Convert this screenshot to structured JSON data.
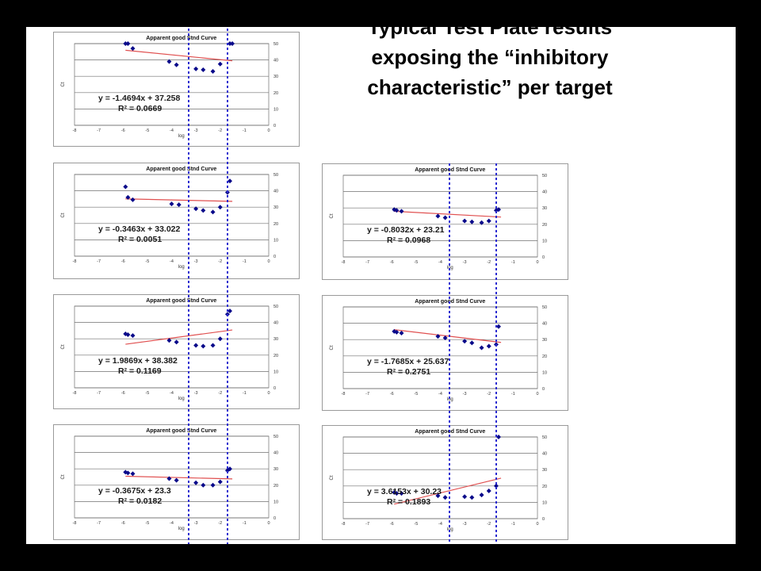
{
  "headline": {
    "line1": "Typical Test Plate results",
    "line2": "exposing the “inhibitory",
    "line3": "characteristic”  per target"
  },
  "colors": {
    "background": "#000000",
    "slide": "#ffffff",
    "point": "#0a0a8a",
    "trendline": "#e05050",
    "guide_line": "#2a2ad0",
    "grid": "#707070"
  },
  "chart_data": [
    {
      "type": "scatter",
      "title": "Apparent good Stnd Curve",
      "xlabel": "log",
      "ylabel": "Ct",
      "xlim": [
        -8,
        0
      ],
      "ylim": [
        0,
        50
      ],
      "xticks": [
        "-8",
        "-7",
        "-6",
        "-5",
        "-4",
        "-3",
        "-2",
        "-1",
        "0"
      ],
      "yticks": [
        "0",
        "10",
        "20",
        "30",
        "40",
        "50"
      ],
      "grid": "horizontal",
      "points": [
        [
          -5.9,
          50
        ],
        [
          -5.8,
          50
        ],
        [
          -5.6,
          47
        ],
        [
          -4.1,
          39
        ],
        [
          -3.8,
          37
        ],
        [
          -3.0,
          34.5
        ],
        [
          -2.7,
          34
        ],
        [
          -2.3,
          33
        ],
        [
          -2.0,
          37.5
        ],
        [
          -1.6,
          50
        ],
        [
          -1.5,
          50
        ]
      ],
      "trendline": {
        "slope": -1.4694,
        "intercept": 37.258,
        "x": [
          -5.9,
          -1.5
        ]
      },
      "equation": "y = -1.4694x + 37.258",
      "r2": "R² = 0.0669"
    },
    {
      "type": "scatter",
      "title": "Apparent good Stnd Curve",
      "xlabel": "log",
      "ylabel": "Ct",
      "xlim": [
        -8,
        0
      ],
      "ylim": [
        0,
        50
      ],
      "xticks": [
        "-8",
        "-7",
        "-6",
        "-5",
        "-4",
        "-3",
        "-2",
        "-1",
        "0"
      ],
      "yticks": [
        "0",
        "10",
        "20",
        "30",
        "40",
        "50"
      ],
      "grid": "horizontal",
      "points": [
        [
          -5.9,
          42.5
        ],
        [
          -5.8,
          36
        ],
        [
          -5.6,
          34.5
        ],
        [
          -4.0,
          32
        ],
        [
          -3.7,
          31.5
        ],
        [
          -3.0,
          29
        ],
        [
          -2.7,
          28
        ],
        [
          -2.3,
          27
        ],
        [
          -2.0,
          30
        ],
        [
          -1.7,
          39
        ],
        [
          -1.6,
          46
        ]
      ],
      "trendline": {
        "slope": -0.3463,
        "intercept": 33.022,
        "x": [
          -5.9,
          -1.5
        ]
      },
      "equation": "y = -0.3463x + 33.022",
      "r2": "R² = 0.0051"
    },
    {
      "type": "scatter",
      "title": "Apparent good Stnd Curve",
      "xlabel": "log",
      "ylabel": "Ct",
      "xlim": [
        -8,
        0
      ],
      "ylim": [
        0,
        50
      ],
      "xticks": [
        "-8",
        "-7",
        "-6",
        "-5",
        "-4",
        "-3",
        "-2",
        "-1",
        "0"
      ],
      "yticks": [
        "0",
        "10",
        "20",
        "30",
        "40",
        "50"
      ],
      "grid": "horizontal",
      "points": [
        [
          -5.9,
          29
        ],
        [
          -5.8,
          28.5
        ],
        [
          -5.6,
          28
        ],
        [
          -4.1,
          25
        ],
        [
          -3.8,
          24
        ],
        [
          -3.0,
          22
        ],
        [
          -2.7,
          21.5
        ],
        [
          -2.3,
          21
        ],
        [
          -2.0,
          22
        ],
        [
          -1.7,
          28.5
        ],
        [
          -1.6,
          29
        ]
      ],
      "trendline": {
        "slope": -0.8032,
        "intercept": 23.21,
        "x": [
          -5.9,
          -1.5
        ]
      },
      "equation": "y = -0.8032x + 23.21",
      "r2": "R² = 0.0968"
    },
    {
      "type": "scatter",
      "title": "Apparent good Stnd Curve",
      "xlabel": "log",
      "ylabel": "Ct",
      "xlim": [
        -8,
        0
      ],
      "ylim": [
        0,
        50
      ],
      "xticks": [
        "-8",
        "-7",
        "-6",
        "-5",
        "-4",
        "-3",
        "-2",
        "-1",
        "0"
      ],
      "yticks": [
        "0",
        "10",
        "20",
        "30",
        "40",
        "50"
      ],
      "grid": "horizontal",
      "points": [
        [
          -5.9,
          33
        ],
        [
          -5.8,
          32.5
        ],
        [
          -5.6,
          32
        ],
        [
          -4.1,
          29
        ],
        [
          -3.8,
          28
        ],
        [
          -3.0,
          26
        ],
        [
          -2.7,
          25.5
        ],
        [
          -2.3,
          26
        ],
        [
          -2.0,
          30
        ],
        [
          -1.7,
          45
        ],
        [
          -1.6,
          47
        ]
      ],
      "trendline": {
        "slope": 1.9869,
        "intercept": 38.382,
        "x": [
          -5.9,
          -1.5
        ]
      },
      "equation": "y = 1.9869x + 38.382",
      "r2": "R² = 0.1169"
    },
    {
      "type": "scatter",
      "title": "Apparent good Stnd Curve",
      "xlabel": "log",
      "ylabel": "Ct",
      "xlim": [
        -8,
        0
      ],
      "ylim": [
        0,
        50
      ],
      "xticks": [
        "-8",
        "-7",
        "-6",
        "-5",
        "-4",
        "-3",
        "-2",
        "-1",
        "0"
      ],
      "yticks": [
        "0",
        "10",
        "20",
        "30",
        "40",
        "50"
      ],
      "grid": "horizontal",
      "points": [
        [
          -5.9,
          35
        ],
        [
          -5.8,
          34.5
        ],
        [
          -5.6,
          34
        ],
        [
          -4.1,
          32
        ],
        [
          -3.8,
          31
        ],
        [
          -3.0,
          29
        ],
        [
          -2.7,
          28
        ],
        [
          -2.3,
          25
        ],
        [
          -2.0,
          26
        ],
        [
          -1.7,
          27
        ],
        [
          -1.6,
          38
        ]
      ],
      "trendline": {
        "slope": -1.7685,
        "intercept": 25.637,
        "x": [
          -5.9,
          -1.5
        ]
      },
      "equation": "y = -1.7685x + 25.637",
      "r2": "R² = 0.2751"
    },
    {
      "type": "scatter",
      "title": "Apparent good Stnd Curve",
      "xlabel": "log",
      "ylabel": "Ct",
      "xlim": [
        -8,
        0
      ],
      "ylim": [
        0,
        50
      ],
      "xticks": [
        "-8",
        "-7",
        "-6",
        "-5",
        "-4",
        "-3",
        "-2",
        "-1",
        "0"
      ],
      "yticks": [
        "0",
        "10",
        "20",
        "30",
        "40",
        "50"
      ],
      "grid": "horizontal",
      "points": [
        [
          -5.9,
          28
        ],
        [
          -5.8,
          27.5
        ],
        [
          -5.6,
          27
        ],
        [
          -4.1,
          24
        ],
        [
          -3.8,
          23
        ],
        [
          -3.0,
          21.5
        ],
        [
          -2.7,
          20
        ],
        [
          -2.3,
          20
        ],
        [
          -2.0,
          22
        ],
        [
          -1.7,
          29
        ],
        [
          -1.6,
          30
        ]
      ],
      "trendline": {
        "slope": -0.3675,
        "intercept": 23.3,
        "x": [
          -5.9,
          -1.5
        ]
      },
      "equation": "y = -0.3675x + 23.3",
      "r2": "R² = 0.0182"
    },
    {
      "type": "scatter",
      "title": "Apparent good Stnd Curve",
      "xlabel": "log",
      "ylabel": "Ct",
      "xlim": [
        -8,
        0
      ],
      "ylim": [
        0,
        50
      ],
      "xticks": [
        "-8",
        "-7",
        "-6",
        "-5",
        "-4",
        "-3",
        "-2",
        "-1",
        "0"
      ],
      "yticks": [
        "0",
        "10",
        "20",
        "30",
        "40",
        "50"
      ],
      "grid": "horizontal",
      "points": [
        [
          -5.9,
          16
        ],
        [
          -5.8,
          15.5
        ],
        [
          -5.6,
          15.5
        ],
        [
          -4.1,
          14
        ],
        [
          -3.8,
          13
        ],
        [
          -3.0,
          13.5
        ],
        [
          -2.7,
          13
        ],
        [
          -2.3,
          14.5
        ],
        [
          -2.0,
          17
        ],
        [
          -1.7,
          20
        ],
        [
          -1.6,
          50
        ]
      ],
      "trendline": {
        "slope": 3.6153,
        "intercept": 30.23,
        "x": [
          -5.9,
          -1.5
        ]
      },
      "equation": "y = 3.6153x + 30.23",
      "r2": "R² = 0.1893"
    }
  ]
}
